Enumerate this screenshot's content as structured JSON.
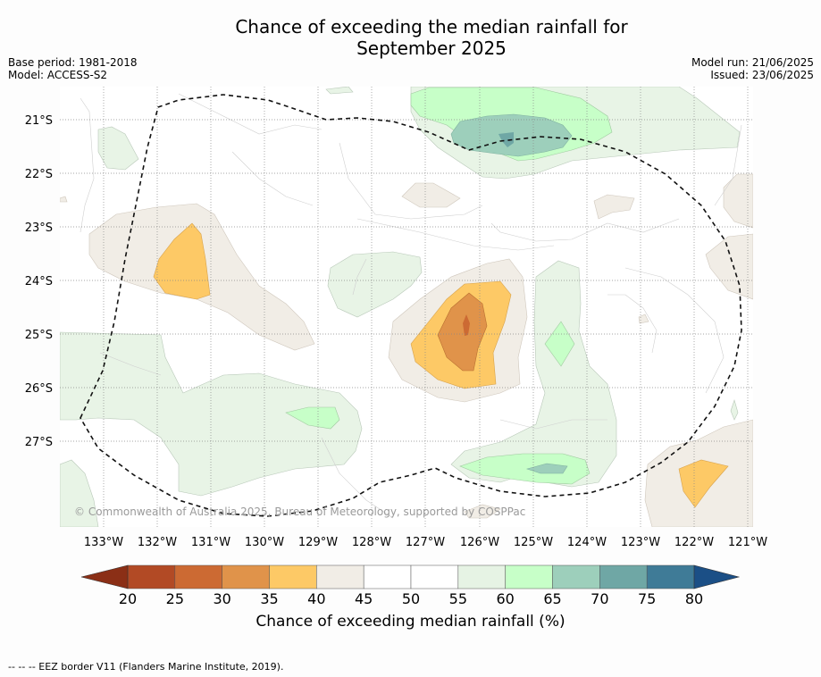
{
  "title_line1": "Chance of exceeding the median rainfall for",
  "title_line2": "September 2025",
  "base_period": "Base period: 1981-2018",
  "model": "Model: ACCESS-S2",
  "model_run": "Model run: 21/06/2025",
  "issued": "Issued: 23/06/2025",
  "copyright": "© Commonwealth of Australia 2025, Bureau of Meteorology, supported by COSPPac",
  "lat_labels": [
    "21°S",
    "22°S",
    "23°S",
    "24°S",
    "25°S",
    "26°S",
    "27°S"
  ],
  "lon_labels": [
    "133°W",
    "132°W",
    "131°W",
    "130°W",
    "129°W",
    "128°W",
    "127°W",
    "126°W",
    "125°W",
    "124°W",
    "123°W",
    "122°W",
    "121°W"
  ],
  "colorbar": {
    "ticks": [
      "20",
      "25",
      "30",
      "35",
      "40",
      "45",
      "50",
      "55",
      "60",
      "65",
      "70",
      "75",
      "80"
    ],
    "colors": [
      "#b24a25",
      "#cc6a33",
      "#e0934a",
      "#fdc966",
      "#f1ede6",
      "#ffffff",
      "#ffffff",
      "#e6f3e4",
      "#c7ffc8",
      "#9dcfbb",
      "#6fa7a5",
      "#3f7b97"
    ],
    "under_color": "#8b2f16",
    "over_color": "#1b4f86",
    "label": "Chance of exceeding median rainfall (%)"
  },
  "footer": "--  --  -- EEZ border V11 (Flanders Marine Institute, 2019)."
}
